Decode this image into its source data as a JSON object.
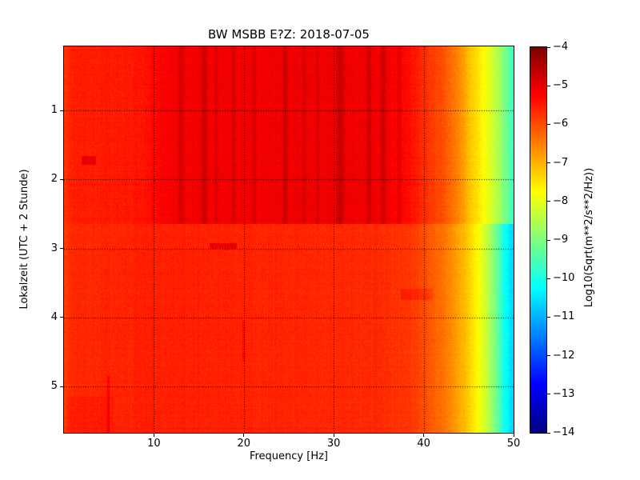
{
  "chart_data": {
    "type": "heatmap",
    "subtype": "spectrogram",
    "title": "BW MSBB E?Z: 2018-07-05",
    "xlabel": "Frequency [Hz]",
    "ylabel": "Lokalzeit (UTC + 2 Stunde)",
    "x_range": [
      0,
      50
    ],
    "x_ticks": [
      10,
      20,
      30,
      40,
      50
    ],
    "x_tick_labels": [
      "10",
      "20",
      "30",
      "40",
      "50"
    ],
    "y_range": [
      0.07,
      5.67
    ],
    "y_ticks": [
      1,
      2,
      3,
      4,
      5
    ],
    "y_tick_labels": [
      "1",
      "2",
      "3",
      "4",
      "5"
    ],
    "y_axis_direction": "time increases downward",
    "grid": "dotted",
    "grid_color": "#000000",
    "colorbar": {
      "label": "Log10(Sqrt(m**2/s**2/Hz))",
      "vmin": -14,
      "vmax": -4,
      "ticks": [
        -4,
        -5,
        -6,
        -7,
        -8,
        -9,
        -10,
        -11,
        -12,
        -13,
        -14
      ],
      "tick_labels": [
        "−4",
        "−5",
        "−6",
        "−7",
        "−8",
        "−9",
        "−10",
        "−11",
        "−12",
        "−13",
        "−14"
      ],
      "colormap": "jet",
      "top_color": "#800000",
      "bottom_color": "#000080"
    },
    "segments": [
      {
        "name": "loud-early-morning",
        "t_start": 0.07,
        "t_end": 2.64,
        "streaks": true,
        "profile": [
          [
            0,
            -5.75
          ],
          [
            1,
            -5.55
          ],
          [
            9,
            -5.45
          ],
          [
            11,
            -5.2
          ],
          [
            14,
            -5.15
          ],
          [
            30,
            -5.1
          ],
          [
            36,
            -5.15
          ],
          [
            38,
            -5.3
          ],
          [
            40,
            -5.65
          ],
          [
            42,
            -6.0
          ],
          [
            44,
            -6.6
          ],
          [
            45,
            -7.1
          ],
          [
            46,
            -7.5
          ],
          [
            47,
            -7.9
          ],
          [
            48,
            -8.4
          ],
          [
            49,
            -9.0
          ],
          [
            50,
            -9.7
          ]
        ]
      },
      {
        "name": "quiet-daytime",
        "t_start": 2.64,
        "t_end": 5.67,
        "streaks": false,
        "profile": [
          [
            0,
            -5.85
          ],
          [
            1,
            -5.65
          ],
          [
            10,
            -5.55
          ],
          [
            25,
            -5.6
          ],
          [
            35,
            -5.65
          ],
          [
            38,
            -5.75
          ],
          [
            40,
            -5.95
          ],
          [
            42,
            -6.35
          ],
          [
            43,
            -6.6
          ],
          [
            44,
            -6.9
          ],
          [
            45,
            -7.25
          ],
          [
            46,
            -7.75
          ],
          [
            47,
            -8.3
          ],
          [
            48,
            -9.1
          ],
          [
            49,
            -10.1
          ],
          [
            50,
            -10.7
          ]
        ]
      }
    ],
    "streaks": [
      {
        "f": 13.0,
        "width": 1.0,
        "dv": 0.35
      },
      {
        "f": 15.6,
        "width": 0.9,
        "dv": 0.5
      },
      {
        "f": 16.9,
        "width": 0.6,
        "dv": 0.3
      },
      {
        "f": 18.9,
        "width": 0.7,
        "dv": 0.3
      },
      {
        "f": 21.2,
        "width": 0.6,
        "dv": 0.35
      },
      {
        "f": 24.6,
        "width": 0.8,
        "dv": 0.45
      },
      {
        "f": 26.7,
        "width": 0.6,
        "dv": 0.3
      },
      {
        "f": 28.2,
        "width": 0.5,
        "dv": 0.25
      },
      {
        "f": 30.7,
        "width": 1.4,
        "dv": 0.45
      },
      {
        "f": 33.9,
        "width": 0.9,
        "dv": 0.4
      },
      {
        "f": 35.5,
        "width": 0.8,
        "dv": 0.5
      },
      {
        "f": 37.3,
        "width": 0.6,
        "dv": 0.35
      }
    ],
    "anomalies": [
      {
        "t0": 1.66,
        "t1": 1.79,
        "f0": 2.0,
        "f1": 3.6,
        "dv": 0.5
      },
      {
        "t0": 2.92,
        "t1": 3.0,
        "f0": 16.2,
        "f1": 19.2,
        "dv": 0.55
      },
      {
        "t0": 3.58,
        "t1": 3.74,
        "f0": 37.5,
        "f1": 41.0,
        "dv": 0.25
      },
      {
        "t0": 4.05,
        "t1": 4.65,
        "f0": 19.8,
        "f1": 20.15,
        "dv": 0.3
      },
      {
        "t0": 4.85,
        "t1": 5.67,
        "f0": 4.8,
        "f1": 5.05,
        "dv": 0.35
      },
      {
        "t0": 5.15,
        "t1": 5.67,
        "f0": 0.3,
        "f1": 5.5,
        "dv": 0.12
      }
    ],
    "noise": 0.14
  }
}
